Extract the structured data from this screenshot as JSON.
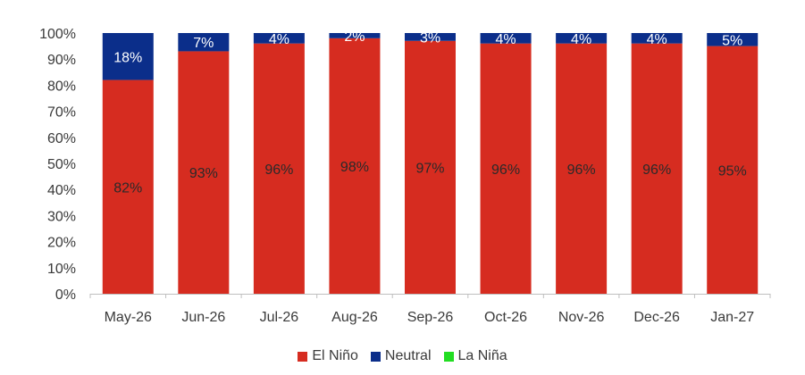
{
  "chart_data": {
    "type": "bar",
    "stacked": true,
    "categories": [
      "May-26",
      "Jun-26",
      "Jul-26",
      "Aug-26",
      "Sep-26",
      "Oct-26",
      "Nov-26",
      "Dec-26",
      "Jan-27"
    ],
    "series": [
      {
        "name": "El Niño",
        "color": "#d62c20",
        "values": [
          82,
          93,
          96,
          98,
          97,
          96,
          96,
          96,
          95
        ]
      },
      {
        "name": "Neutral",
        "color": "#0b2e8a",
        "values": [
          18,
          7,
          4,
          2,
          3,
          4,
          4,
          4,
          5
        ]
      },
      {
        "name": "La Niña",
        "color": "#22dd22",
        "values": [
          0,
          0,
          0,
          0,
          0,
          0,
          0,
          0,
          0
        ]
      }
    ],
    "data_labels": {
      "El Niño": [
        "82%",
        "93%",
        "96%",
        "98%",
        "97%",
        "96%",
        "96%",
        "96%",
        "95%"
      ],
      "Neutral": [
        "18%",
        "7%",
        "4%",
        "2%",
        "3%",
        "4%",
        "4%",
        "4%",
        "5%"
      ]
    },
    "ylim": [
      0,
      100
    ],
    "yticks": [
      "0%",
      "10%",
      "20%",
      "30%",
      "40%",
      "50%",
      "60%",
      "70%",
      "80%",
      "90%",
      "100%"
    ],
    "grid": false,
    "legend_position": "bottom"
  }
}
